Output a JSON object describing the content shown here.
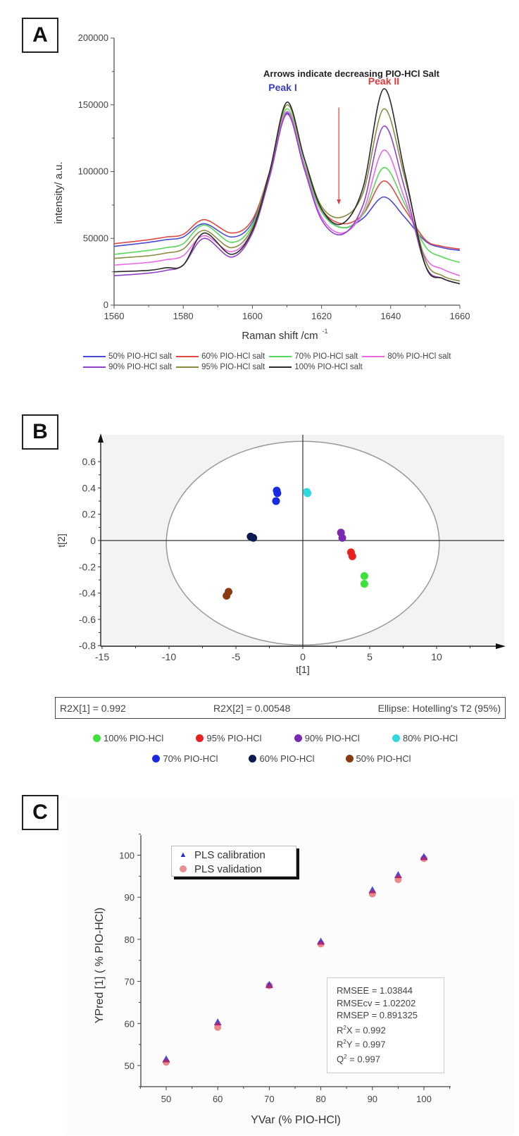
{
  "panels": {
    "A": {
      "label": "A"
    },
    "B": {
      "label": "B"
    },
    "C": {
      "label": "C"
    }
  },
  "chart_data": [
    {
      "panel": "A",
      "type": "line",
      "title": "",
      "annotation": "Arrows indicate decreasing PIO-HCl Salt",
      "peak_labels": [
        {
          "text": "Peak I",
          "x": 1610,
          "color": "#3a3ad0"
        },
        {
          "text": "Peak II",
          "x": 1638,
          "color": "#e03a3a"
        }
      ],
      "arrow": {
        "x": 1625,
        "from_y": 148000,
        "to_y": 76000,
        "color": "#e04040"
      },
      "xlabel": "Raman shift /cm",
      "xlabel_sup": "-1",
      "ylabel": "intensity/ a.u.",
      "xlim": [
        1560,
        1660
      ],
      "ylim": [
        0,
        200000
      ],
      "xticks": [
        "1560",
        "1580",
        "1600",
        "1620",
        "1640",
        "1660"
      ],
      "yticks": [
        "0",
        "50000",
        "100000",
        "150000",
        "200000"
      ],
      "x": [
        1560,
        1570,
        1575,
        1580,
        1586,
        1594,
        1600,
        1605,
        1610,
        1615,
        1620,
        1626,
        1632,
        1638,
        1644,
        1650,
        1655,
        1660
      ],
      "series": [
        {
          "name": "50% PIO-HCl salt",
          "color": "#4a4ad8",
          "values": [
            44000,
            47000,
            49000,
            51000,
            61000,
            51000,
            62000,
            100000,
            144000,
            105000,
            70000,
            58000,
            65000,
            81000,
            66000,
            48000,
            43000,
            41000
          ]
        },
        {
          "name": "60% PIO-HCl salt",
          "color": "#e04848",
          "values": [
            46000,
            49000,
            51000,
            53000,
            64000,
            54000,
            64000,
            100000,
            145000,
            106000,
            72000,
            61000,
            68000,
            93000,
            72000,
            49000,
            44000,
            42000
          ]
        },
        {
          "name": "70% PIO-HCl salt",
          "color": "#58d858",
          "values": [
            38000,
            41000,
            43000,
            46000,
            60000,
            47000,
            60000,
            100000,
            147000,
            106000,
            70000,
            58000,
            68000,
            103000,
            76000,
            44000,
            36000,
            32000
          ]
        },
        {
          "name": "80% PIO-HCl salt",
          "color": "#e868e8",
          "values": [
            30000,
            32000,
            34000,
            37000,
            52000,
            40000,
            56000,
            98000,
            145000,
            104000,
            66000,
            54000,
            70000,
            116000,
            80000,
            36000,
            27000,
            22000
          ]
        },
        {
          "name": "90% PIO-HCl salt",
          "color": "#9040c8",
          "values": [
            22000,
            24000,
            26000,
            30000,
            50000,
            36000,
            54000,
            96000,
            143000,
            102000,
            64000,
            53000,
            75000,
            134000,
            88000,
            30000,
            20000,
            16000
          ]
        },
        {
          "name": "95% PIO-HCl salt",
          "color": "#8a8a40",
          "values": [
            35000,
            37000,
            39000,
            42000,
            56000,
            43000,
            58000,
            100000,
            150000,
            110000,
            74000,
            66000,
            84000,
            147000,
            96000,
            34000,
            22000,
            18000
          ]
        },
        {
          "name": "100% PIO-HCl salt",
          "color": "#2a2a2a",
          "values": [
            25000,
            26000,
            28000,
            30000,
            54000,
            38000,
            56000,
            100000,
            152000,
            110000,
            72000,
            61000,
            88000,
            162000,
            100000,
            30000,
            20000,
            16000
          ]
        }
      ],
      "legend_position": "bottom"
    },
    {
      "panel": "B",
      "type": "scatter",
      "title": "",
      "xlabel": "t[1]",
      "ylabel": "t[2]",
      "xlim": [
        -15,
        15
      ],
      "ylim": [
        -0.8,
        0.75
      ],
      "xticks": [
        "-15",
        "-10",
        "-5",
        "0",
        "5",
        "10"
      ],
      "yticks": [
        "-0.8",
        "-0.6",
        "-0.4",
        "-0.2",
        "0",
        "0.2",
        "0.4",
        "0.6"
      ],
      "ellipse": {
        "label": "Hotelling's T2 (95%)",
        "cx": 0,
        "cy": -0.02,
        "rx": 10.2,
        "ry": 0.775
      },
      "series": [
        {
          "name": "100% PIO-HCl",
          "color": "#3ee03e",
          "points": [
            [
              4.6,
              -0.27
            ],
            [
              4.6,
              -0.33
            ]
          ]
        },
        {
          "name": "95% PIO-HCl",
          "color": "#e82020",
          "points": [
            [
              3.6,
              -0.09
            ],
            [
              3.7,
              -0.12
            ]
          ]
        },
        {
          "name": "90% PIO-HCl",
          "color": "#7a2ab0",
          "points": [
            [
              2.85,
              0.06
            ],
            [
              2.95,
              0.02
            ]
          ]
        },
        {
          "name": "80% PIO-HCl",
          "color": "#30d8e0",
          "points": [
            [
              0.3,
              0.37
            ],
            [
              0.35,
              0.36
            ]
          ]
        },
        {
          "name": "70% PIO-HCl",
          "color": "#1a2ae0",
          "points": [
            [
              -1.95,
              0.38
            ],
            [
              -1.9,
              0.36
            ],
            [
              -2.0,
              0.3
            ]
          ]
        },
        {
          "name": "60% PIO-HCl",
          "color": "#0a1a50",
          "points": [
            [
              -3.9,
              0.03
            ],
            [
              -3.7,
              0.02
            ]
          ]
        },
        {
          "name": "50% PIO-HCl",
          "color": "#8a3a10",
          "points": [
            [
              -5.55,
              -0.39
            ],
            [
              -5.7,
              -0.42
            ]
          ]
        }
      ],
      "stats": {
        "r2x1": "R2X[1] = 0.992",
        "r2x2": "R2X[2] = 0.00548",
        "ellipse": "Ellipse: Hotelling's T2 (95%)"
      },
      "legend_position": "bottom"
    },
    {
      "panel": "C",
      "type": "scatter",
      "title": "",
      "xlabel": "YVar (% PIO-HCl)",
      "ylabel": "YPred [1] ( % PIO-HCl)",
      "xlim": [
        45,
        105
      ],
      "ylim": [
        45,
        105
      ],
      "xticks": [
        "50",
        "60",
        "70",
        "80",
        "90",
        "100"
      ],
      "yticks": [
        "50",
        "60",
        "70",
        "80",
        "90",
        "100"
      ],
      "series": [
        {
          "name": "PLS calibration",
          "marker": "triangle",
          "color": "#2a2ad8",
          "points": [
            [
              50,
              51.5
            ],
            [
              60,
              60.3
            ],
            [
              70,
              69.2
            ],
            [
              80,
              79.5
            ],
            [
              90,
              91.7
            ],
            [
              95,
              95.3
            ],
            [
              100,
              99.6
            ]
          ]
        },
        {
          "name": "PLS validation",
          "marker": "circle",
          "color": "#e87a7a",
          "points": [
            [
              50,
              50.8
            ],
            [
              60,
              59.1
            ],
            [
              70,
              69.0
            ],
            [
              80,
              78.9
            ],
            [
              90,
              90.8
            ],
            [
              95,
              94.2
            ],
            [
              100,
              99.2
            ]
          ]
        }
      ],
      "stats": [
        "RMSEE = 1.03844",
        "RMSEcv = 1.02202",
        "RMSEP = 0.891325"
      ],
      "stats_sup": [
        {
          "pre": "R",
          "sup": "2",
          "post": "X = 0.992"
        },
        {
          "pre": "R",
          "sup": "2",
          "post": "Y = 0.997"
        },
        {
          "pre": "Q",
          "sup": "2",
          "post": " = 0.997"
        }
      ],
      "legend_position": "upper left"
    }
  ]
}
